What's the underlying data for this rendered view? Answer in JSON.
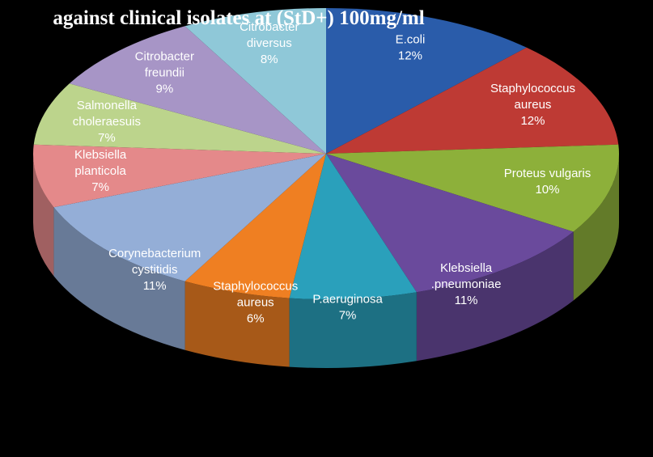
{
  "chart_data": {
    "type": "pie",
    "title": "against clinical isolates at (StD+) 100mg/ml",
    "categories": [
      [
        "E.coli"
      ],
      [
        "Staphylococcus",
        "aureus"
      ],
      [
        "Proteus vulgaris"
      ],
      [
        "Klebsiella",
        ".pneumoniae"
      ],
      [
        "P.aeruginosa"
      ],
      [
        "Staphylococcus",
        "aureus"
      ],
      [
        "Corynebacterium",
        "cystitidis"
      ],
      [
        "Klebsiella",
        "planticola"
      ],
      [
        "Salmonella",
        "choleraesuis"
      ],
      [
        "Citrobacter",
        "freundii"
      ],
      [
        "Citrobacter",
        "diversus"
      ]
    ],
    "values": [
      12,
      12,
      10,
      11,
      7,
      6,
      11,
      7,
      7,
      9,
      8
    ],
    "value_labels": [
      "12%",
      "12%",
      "10%",
      "11%",
      "7%",
      "6%",
      "11%",
      "7%",
      "7%",
      "9%",
      "8%"
    ],
    "colors": [
      "#2a5caa",
      "#be3a34",
      "#8db03a",
      "#6a4a9c",
      "#2aa0bb",
      "#ef7f22",
      "#94aed7",
      "#e4898a",
      "#bcd48c",
      "#a795c6",
      "#8fc8d8"
    ]
  }
}
